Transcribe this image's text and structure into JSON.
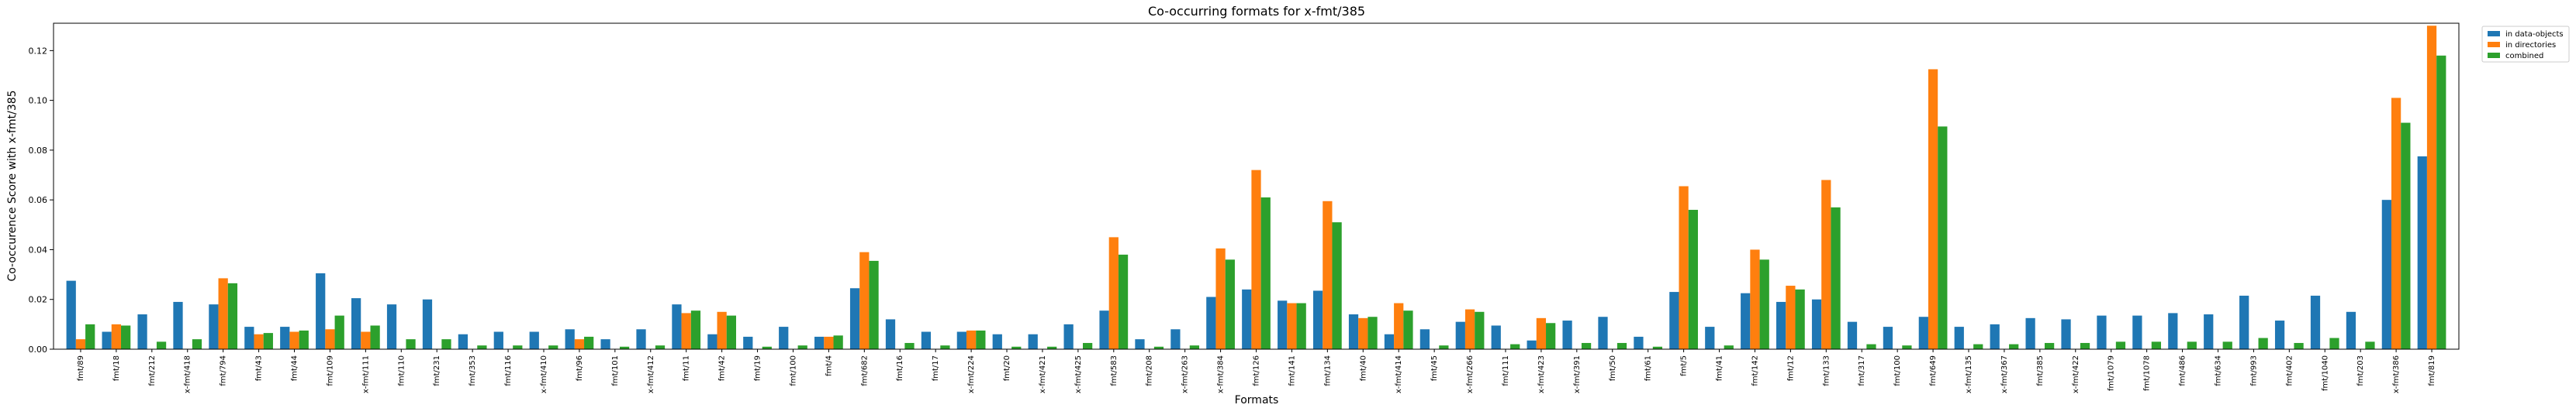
{
  "chart_data": {
    "type": "bar",
    "title": "Co-occurring formats for x-fmt/385",
    "xlabel": "Formats",
    "ylabel": "Co-occurence Score with x-fmt/385",
    "ylim": [
      0,
      0.131
    ],
    "yticks": [
      0.0,
      0.02,
      0.04,
      0.06,
      0.08,
      0.1,
      0.12
    ],
    "grid": false,
    "legend_position": "outside top-right",
    "categories": [
      "fmt/89",
      "fmt/18",
      "fmt/212",
      "x-fmt/418",
      "fmt/794",
      "fmt/43",
      "fmt/44",
      "fmt/109",
      "x-fmt/111",
      "fmt/110",
      "fmt/231",
      "fmt/353",
      "fmt/116",
      "x-fmt/410",
      "fmt/96",
      "fmt/101",
      "x-fmt/412",
      "fmt/11",
      "fmt/42",
      "fmt/19",
      "fmt/100",
      "fmt/4",
      "fmt/682",
      "fmt/16",
      "fmt/17",
      "x-fmt/224",
      "fmt/20",
      "x-fmt/421",
      "x-fmt/425",
      "fmt/583",
      "fmt/208",
      "x-fmt/263",
      "x-fmt/384",
      "fmt/126",
      "fmt/141",
      "fmt/134",
      "fmt/40",
      "x-fmt/414",
      "fmt/45",
      "x-fmt/266",
      "fmt/111",
      "x-fmt/423",
      "x-fmt/391",
      "fmt/50",
      "fmt/61",
      "fmt/5",
      "fmt/41",
      "fmt/142",
      "fmt/12",
      "fmt/133",
      "fmt/317",
      "fmt/100",
      "fmt/649",
      "x-fmt/135",
      "x-fmt/367",
      "fmt/385",
      "x-fmt/422",
      "fmt/1079",
      "fmt/1078",
      "fmt/486",
      "fmt/634",
      "fmt/993",
      "fmt/402",
      "fmt/1040",
      "fmt/203",
      "x-fmt/386",
      "fmt/819"
    ],
    "series": [
      {
        "name": "in data-objects",
        "color": "#1f77b4",
        "values": [
          0.0275,
          0.007,
          0.014,
          0.019,
          0.018,
          0.009,
          0.009,
          0.0305,
          0.0205,
          0.018,
          0.02,
          0.006,
          0.007,
          0.007,
          0.008,
          0.004,
          0.008,
          0.018,
          0.006,
          0.005,
          0.009,
          0.005,
          0.0245,
          0.012,
          0.007,
          0.007,
          0.006,
          0.006,
          0.01,
          0.0155,
          0.004,
          0.008,
          0.021,
          0.024,
          0.0195,
          0.0235,
          0.014,
          0.006,
          0.008,
          0.011,
          0.0095,
          0.0035,
          0.0115,
          0.013,
          0.005,
          0.023,
          0.009,
          0.0225,
          0.019,
          0.02,
          0.011,
          0.009,
          0.013,
          0.009,
          0.01,
          0.0125,
          0.012,
          0.0135,
          0.0135,
          0.0145,
          0.014,
          0.0215,
          0.0115,
          0.0215,
          0.015,
          0.06,
          0.0775
        ]
      },
      {
        "name": "in directories",
        "color": "#ff7f0e",
        "values": [
          0.004,
          0.01,
          0.0,
          0.0,
          0.0285,
          0.006,
          0.007,
          0.008,
          0.007,
          0.0,
          0.0,
          0.0,
          0.0,
          0.0,
          0.004,
          0.0,
          0.0,
          0.0145,
          0.015,
          0.0,
          0.0,
          0.005,
          0.039,
          0.0,
          0.0,
          0.0075,
          0.0,
          0.0,
          0.0,
          0.045,
          0.0,
          0.0,
          0.0405,
          0.072,
          0.0185,
          0.0595,
          0.0125,
          0.0185,
          0.0,
          0.016,
          0.0,
          0.0125,
          0.0,
          0.0,
          0.0,
          0.0655,
          0.0,
          0.04,
          0.0255,
          0.068,
          0.0,
          0.0,
          0.1125,
          0.0,
          0.0,
          0.0,
          0.0,
          0.0,
          0.0,
          0.0,
          0.0,
          0.0,
          0.0,
          0.0,
          0.0,
          0.101,
          0.13
        ]
      },
      {
        "name": "combined",
        "color": "#2ca02c",
        "values": [
          0.01,
          0.0095,
          0.003,
          0.004,
          0.0265,
          0.0065,
          0.0075,
          0.0135,
          0.0095,
          0.004,
          0.004,
          0.0015,
          0.0015,
          0.0015,
          0.005,
          0.001,
          0.0015,
          0.0155,
          0.0135,
          0.001,
          0.0015,
          0.0055,
          0.0355,
          0.0025,
          0.0015,
          0.0075,
          0.001,
          0.001,
          0.0025,
          0.038,
          0.001,
          0.0015,
          0.036,
          0.061,
          0.0185,
          0.051,
          0.013,
          0.0155,
          0.0015,
          0.015,
          0.002,
          0.0105,
          0.0025,
          0.0025,
          0.001,
          0.056,
          0.0015,
          0.036,
          0.024,
          0.057,
          0.002,
          0.0015,
          0.0895,
          0.002,
          0.002,
          0.0025,
          0.0025,
          0.003,
          0.003,
          0.003,
          0.003,
          0.0045,
          0.0025,
          0.0045,
          0.003,
          0.091,
          0.118
        ]
      }
    ]
  }
}
